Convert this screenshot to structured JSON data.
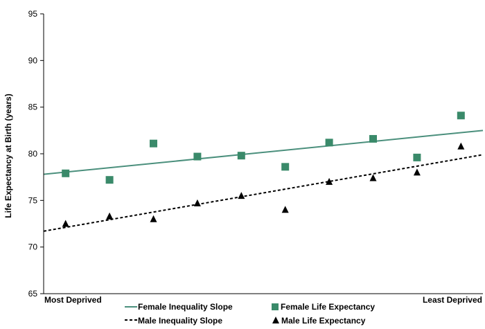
{
  "chart_data": {
    "type": "scatter",
    "ylabel": "Life Expectancy at Birth (years)",
    "ylim": [
      65,
      95
    ],
    "yticks": [
      "65",
      "70",
      "75",
      "80",
      "85",
      "90",
      "95"
    ],
    "x_start_label": "Most Deprived",
    "x_end_label": "Least Deprived",
    "x": [
      1,
      2,
      3,
      4,
      5,
      6,
      7,
      8,
      9,
      10
    ],
    "series": [
      {
        "name": "Female Life Expectancy",
        "marker": "square",
        "color": "#3a8a6a",
        "values": [
          77.9,
          77.2,
          81.1,
          79.7,
          79.8,
          78.6,
          81.2,
          81.6,
          79.6,
          84.1
        ]
      },
      {
        "name": "Male Life Expectancy",
        "marker": "triangle",
        "color": "#000000",
        "values": [
          72.5,
          73.3,
          73.0,
          74.7,
          75.5,
          74.0,
          77.0,
          77.4,
          78.0,
          80.8
        ]
      }
    ],
    "trendlines": [
      {
        "name": "Female Inequality Slope",
        "style": "solid",
        "color": "#4a8f7c",
        "x_range": [
          0.5,
          10.5
        ],
        "y_range": [
          77.8,
          82.5
        ]
      },
      {
        "name": "Male Inequality Slope",
        "style": "dashed",
        "color": "#000000",
        "x_range": [
          0.5,
          10.5
        ],
        "y_range": [
          71.7,
          79.9
        ]
      }
    ],
    "legend": {
      "row1": [
        "Female Inequality Slope",
        "Female Life Expectancy"
      ],
      "row2": [
        "Male Inequality Slope",
        "Male Life Expectancy"
      ]
    },
    "grid": false,
    "legend_position": "bottom"
  }
}
